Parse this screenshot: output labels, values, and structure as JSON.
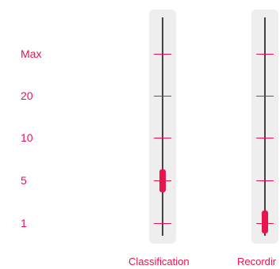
{
  "scale": {
    "labels": [
      "Max",
      "20",
      "10",
      "5",
      "1"
    ]
  },
  "sliders": [
    {
      "label": "Classification",
      "value": "5"
    },
    {
      "label": "Recordir",
      "value": "1"
    }
  ],
  "colors": {
    "accent": "#e8134f",
    "track": "#eeeeee",
    "line": "#444444"
  }
}
